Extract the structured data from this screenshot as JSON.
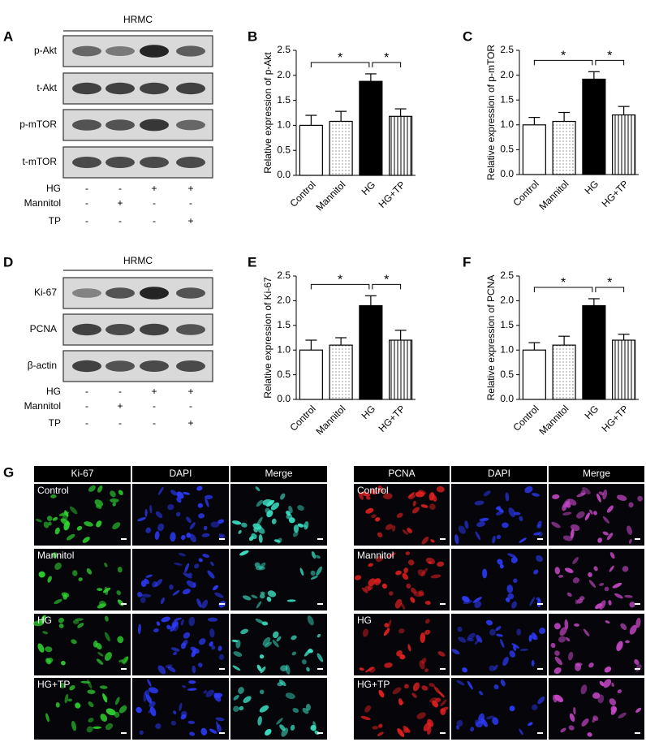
{
  "panel_labels": [
    "A",
    "B",
    "C",
    "D",
    "E",
    "F",
    "G"
  ],
  "blot_a": {
    "header": "HRMC",
    "rows": [
      "p-Akt",
      "t-Akt",
      "p-mTOR",
      "t-mTOR"
    ],
    "conditions": [
      {
        "name": "HG",
        "signs": [
          "-",
          "-",
          "+",
          "+"
        ]
      },
      {
        "name": "Mannitol",
        "signs": [
          "-",
          "+",
          "-",
          "-"
        ]
      },
      {
        "name": "TP",
        "signs": [
          "-",
          "-",
          "-",
          "+"
        ]
      }
    ]
  },
  "blot_d": {
    "header": "HRMC",
    "rows": [
      "Ki-67",
      "PCNA",
      "β-actin"
    ],
    "conditions": [
      {
        "name": "HG",
        "signs": [
          "-",
          "-",
          "+",
          "+"
        ]
      },
      {
        "name": "Mannitol",
        "signs": [
          "-",
          "+",
          "-",
          "-"
        ]
      },
      {
        "name": "TP",
        "signs": [
          "-",
          "-",
          "-",
          "+"
        ]
      }
    ]
  },
  "chart_data": [
    {
      "type": "bar",
      "y_label": "Relative expression of p-Akt",
      "categories": [
        "Control",
        "Mannitol",
        "HG",
        "HG+TP"
      ],
      "values": [
        1.0,
        1.08,
        1.88,
        1.18
      ],
      "errors": [
        0.2,
        0.2,
        0.15,
        0.15
      ],
      "patterns": [
        "white",
        "dots",
        "black",
        "stripes"
      ],
      "significance": [
        "*",
        "*"
      ],
      "ylim": [
        0,
        2.5
      ],
      "yticks": [
        {
          "value": 0,
          "label": "0.0"
        },
        0.5,
        {
          "value": 1,
          "label": "1.0"
        },
        1.5,
        {
          "value": 2,
          "label": "2.0"
        },
        2.5
      ]
    },
    {
      "type": "bar",
      "y_label": "Relative expression of p-mTOR",
      "categories": [
        "Control",
        "Mannitol",
        "HG",
        "HG+TP"
      ],
      "values": [
        1.0,
        1.07,
        1.92,
        1.2
      ],
      "errors": [
        0.15,
        0.18,
        0.15,
        0.17
      ],
      "patterns": [
        "white",
        "dots",
        "black",
        "stripes"
      ],
      "significance": [
        "*",
        "*"
      ],
      "ylim": [
        0,
        2.5
      ],
      "yticks": [
        {
          "value": 0,
          "label": "0.0"
        },
        0.5,
        {
          "value": 1,
          "label": "1.0"
        },
        1.5,
        {
          "value": 2,
          "label": "2.0"
        },
        2.5
      ]
    },
    {
      "type": "bar",
      "y_label": "Relative expression of Ki-67",
      "categories": [
        "Control",
        "Mannitol",
        "HG",
        "HG+TP"
      ],
      "values": [
        1.0,
        1.1,
        1.9,
        1.2
      ],
      "errors": [
        0.2,
        0.15,
        0.2,
        0.2
      ],
      "patterns": [
        "white",
        "dots",
        "black",
        "stripes"
      ],
      "significance": [
        "*",
        "*"
      ],
      "ylim": [
        0,
        2.5
      ],
      "yticks": [
        {
          "value": 0,
          "label": "0.0"
        },
        0.5,
        {
          "value": 1,
          "label": "1.0"
        },
        1.5,
        {
          "value": 2,
          "label": "2.0"
        },
        2.5
      ]
    },
    {
      "type": "bar",
      "y_label": "Relative expression of PCNA",
      "categories": [
        "Control",
        "Mannitol",
        "HG",
        "HG+TP"
      ],
      "values": [
        1.0,
        1.1,
        1.9,
        1.2
      ],
      "errors": [
        0.15,
        0.18,
        0.14,
        0.12
      ],
      "patterns": [
        "white",
        "dots",
        "black",
        "stripes"
      ],
      "significance": [
        "*",
        "*"
      ],
      "ylim": [
        0,
        2.5
      ],
      "yticks": [
        {
          "value": 0,
          "label": "0.0"
        },
        0.5,
        {
          "value": 1,
          "label": "1.0"
        },
        1.5,
        {
          "value": 2,
          "label": "2.0"
        },
        2.5
      ]
    }
  ],
  "microscopy": [
    {
      "channels": [
        "Ki-67",
        "DAPI",
        "Merge"
      ],
      "rows": [
        "Control",
        "Mannitol",
        "HG",
        "HG+TP"
      ]
    },
    {
      "channels": [
        "PCNA",
        "DAPI",
        "Merge"
      ],
      "rows": [
        "Control",
        "Mannitol",
        "HG",
        "HG+TP"
      ]
    }
  ]
}
